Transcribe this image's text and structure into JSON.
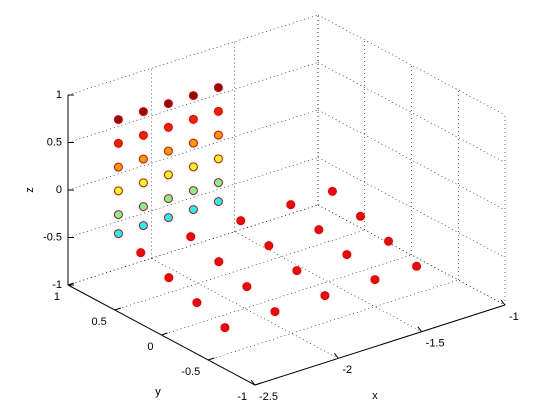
{
  "chart_data": {
    "type": "scatter3d",
    "xlabel": "x",
    "ylabel": "y",
    "zlabel": "z",
    "xlim": [
      -2.5,
      -1
    ],
    "xticks": [
      -2.5,
      -2,
      -1.5,
      -1
    ],
    "ylim": [
      -1,
      1
    ],
    "yticks": [
      -1,
      -0.5,
      0,
      0.5,
      1
    ],
    "zlim": [
      -1,
      1
    ],
    "zticks": [
      -1,
      -0.5,
      0,
      0.5,
      1
    ],
    "grid": true,
    "series": [
      {
        "colormap": "jet",
        "x": [
          -2.45,
          -2.3,
          -2.15,
          -2.0,
          -1.85,
          -2.45,
          -2.3,
          -2.15,
          -2.0,
          -1.85,
          -2.45,
          -2.3,
          -2.15,
          -2.0,
          -1.85,
          -2.45,
          -2.3,
          -2.15,
          -2.0,
          -1.85,
          -2.45,
          -2.3,
          -2.15,
          -2.0,
          -1.85,
          -2.45,
          -2.3,
          -2.15,
          -2.0,
          -1.85
        ],
        "y": [
          0.55,
          0.55,
          0.55,
          0.55,
          0.55,
          0.55,
          0.55,
          0.55,
          0.55,
          0.55,
          0.55,
          0.55,
          0.55,
          0.55,
          0.55,
          0.55,
          0.55,
          0.55,
          0.55,
          0.55,
          0.55,
          0.55,
          0.55,
          0.55,
          0.55,
          0.55,
          0.55,
          0.55,
          0.55,
          0.55
        ],
        "z": [
          0.95,
          0.95,
          0.95,
          0.95,
          0.95,
          0.7,
          0.7,
          0.7,
          0.7,
          0.7,
          0.45,
          0.45,
          0.45,
          0.45,
          0.45,
          0.2,
          0.2,
          0.2,
          0.2,
          0.2,
          -0.05,
          -0.05,
          -0.05,
          -0.05,
          -0.05,
          -0.25,
          -0.25,
          -0.25,
          -0.25,
          -0.25
        ]
      },
      {
        "color": "#ff0000",
        "x": [
          -2.4,
          -2.1,
          -1.8,
          -1.5,
          -1.25,
          -2.4,
          -2.1,
          -1.8,
          -1.5,
          -1.25,
          -2.4,
          -2.1,
          -1.8,
          -1.5,
          -1.25,
          -2.4,
          -2.1,
          -1.8,
          -1.5,
          -1.25
        ],
        "y": [
          0.4,
          0.4,
          0.4,
          0.4,
          0.4,
          0.1,
          0.1,
          0.1,
          0.1,
          0.1,
          -0.2,
          -0.2,
          -0.2,
          -0.2,
          -0.2,
          -0.5,
          -0.5,
          -0.5,
          -0.5,
          -0.5
        ],
        "z": [
          -0.4,
          -0.4,
          -0.4,
          -0.4,
          -0.4,
          -0.505,
          -0.505,
          -0.505,
          -0.505,
          -0.505,
          -0.61,
          -0.61,
          -0.61,
          -0.61,
          -0.61,
          -0.715,
          -0.715,
          -0.715,
          -0.715,
          -0.715
        ]
      }
    ]
  }
}
